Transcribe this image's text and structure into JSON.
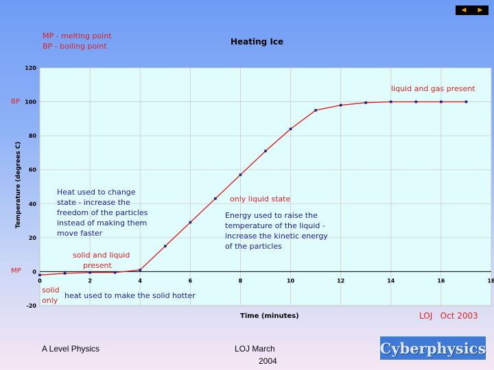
{
  "legend_notes": {
    "mp": "MP - melting point",
    "bp": "BP - boiling point"
  },
  "axis_markers": {
    "bp": "BP",
    "mp": "MP"
  },
  "annotations": {
    "liquid_gas": "liquid and gas present",
    "only_liquid": "only liquid state",
    "solid_liquid_1": "solid and liquid",
    "solid_liquid_2": "present",
    "solid_only_1": "solid",
    "solid_only_2": "only",
    "heat_solid": "heat used to make the solid hotter",
    "heat_change": [
      "Heat used to change",
      "state - increase the",
      "freedom of the particles",
      "instead of making them",
      "move faster"
    ],
    "energy_liquid": [
      "Energy used to raise the",
      "temperature of the liquid -",
      "increase the kinetic energy",
      "of the particles"
    ],
    "credit": "LOJ   Oct 2003"
  },
  "footer": {
    "left": "A Level Physics",
    "center_1": "LOJ March",
    "center_2": "2004",
    "logo": "Cyberphysics"
  },
  "colors": {
    "series": "#e02020",
    "marker": "#202080",
    "plot_bg": "#e0fcfc",
    "grid": "#cccccc",
    "note_blue": "#1a1a9a",
    "note_red": "#e02020"
  },
  "icons": [
    "back-arrow-icon",
    "forward-arrow-icon"
  ],
  "chart_data": {
    "type": "line",
    "title": "Heating Ice",
    "xlabel": "Time (minutes)",
    "ylabel": "Temperature (degrees C)",
    "xlim": [
      0,
      18
    ],
    "ylim": [
      -20,
      120
    ],
    "x_ticks": [
      0,
      2,
      4,
      6,
      8,
      10,
      12,
      14,
      16,
      18
    ],
    "y_ticks": [
      -20,
      0,
      20,
      40,
      60,
      80,
      100,
      120
    ],
    "grid": true,
    "series": [
      {
        "x": [
          0,
          1,
          2,
          3,
          4,
          5,
          6,
          7,
          8,
          9,
          10,
          11,
          12,
          13,
          14,
          15,
          16,
          17
        ],
        "values": [
          -2,
          -1,
          -0.5,
          -0.5,
          1,
          15,
          29,
          43,
          57,
          71,
          84,
          95,
          98,
          99.5,
          100,
          100,
          100,
          100
        ]
      }
    ]
  }
}
